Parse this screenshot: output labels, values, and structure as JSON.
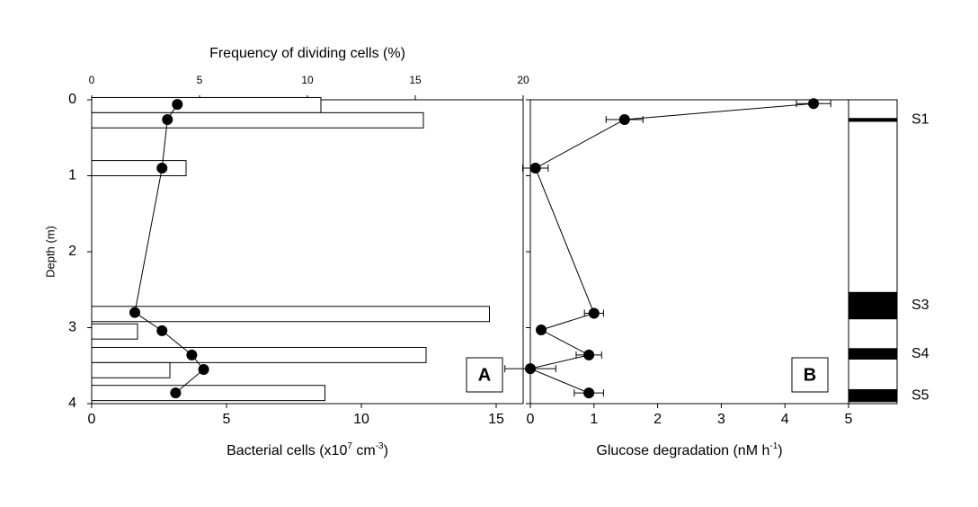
{
  "chart_data": [
    {
      "type": "combo",
      "panel_label": "A",
      "y_label": "Depth (m)",
      "ylim": [
        0,
        4
      ],
      "yticks": [
        0,
        1,
        2,
        3,
        4
      ],
      "xlim": [
        0,
        16
      ],
      "xticks": [
        0,
        5,
        10,
        15
      ],
      "x_label_parts": [
        "Bacterial cells (x10",
        "7",
        " cm",
        "-3",
        ")"
      ],
      "x2lim": [
        0,
        20
      ],
      "x2ticks": [
        0,
        5,
        10,
        15,
        20
      ],
      "x2_label": "Frequency of dividing cells (%)",
      "series": [
        {
          "type": "bar",
          "axis": "x",
          "color": "#ffffff",
          "depths": [
            0.07,
            0.27,
            0.9,
            2.82,
            3.05,
            3.36,
            3.56,
            3.86
          ],
          "values": [
            8.5,
            12.3,
            3.5,
            14.75,
            1.7,
            12.4,
            2.9,
            8.65
          ]
        },
        {
          "type": "line",
          "axis": "x2",
          "color": "#000000",
          "depths": [
            0.06,
            0.26,
            0.9,
            2.8,
            3.04,
            3.36,
            3.55,
            3.86
          ],
          "values": [
            3.97,
            3.51,
            3.26,
            2.0,
            3.26,
            4.64,
            5.19,
            3.89
          ]
        }
      ]
    },
    {
      "type": "line",
      "panel_label": "B",
      "ylim": [
        0,
        4
      ],
      "yticks": [
        0,
        1,
        2,
        3,
        4
      ],
      "xlim": [
        0,
        5
      ],
      "xticks": [
        0,
        1,
        2,
        3,
        4,
        5
      ],
      "x_label_parts": [
        "Glucose degradation (nM h",
        "-1",
        ")"
      ],
      "series": [
        {
          "type": "line",
          "color": "#000000",
          "depths": [
            0.05,
            0.26,
            0.9,
            2.81,
            3.03,
            3.36,
            3.54,
            3.86
          ],
          "values": [
            4.45,
            1.48,
            0.08,
            1.0,
            0.17,
            0.92,
            0.0,
            0.92
          ],
          "errors": [
            0.27,
            0.29,
            0.2,
            0.15,
            0.05,
            0.2,
            0.4,
            0.23
          ]
        }
      ],
      "bands": [
        {
          "label": "S1",
          "from": 0.24,
          "to": 0.29
        },
        {
          "label": "S3",
          "from": 2.53,
          "to": 2.89
        },
        {
          "label": "S4",
          "from": 3.27,
          "to": 3.42
        },
        {
          "label": "S5",
          "from": 3.81,
          "to": 3.98
        }
      ]
    }
  ]
}
